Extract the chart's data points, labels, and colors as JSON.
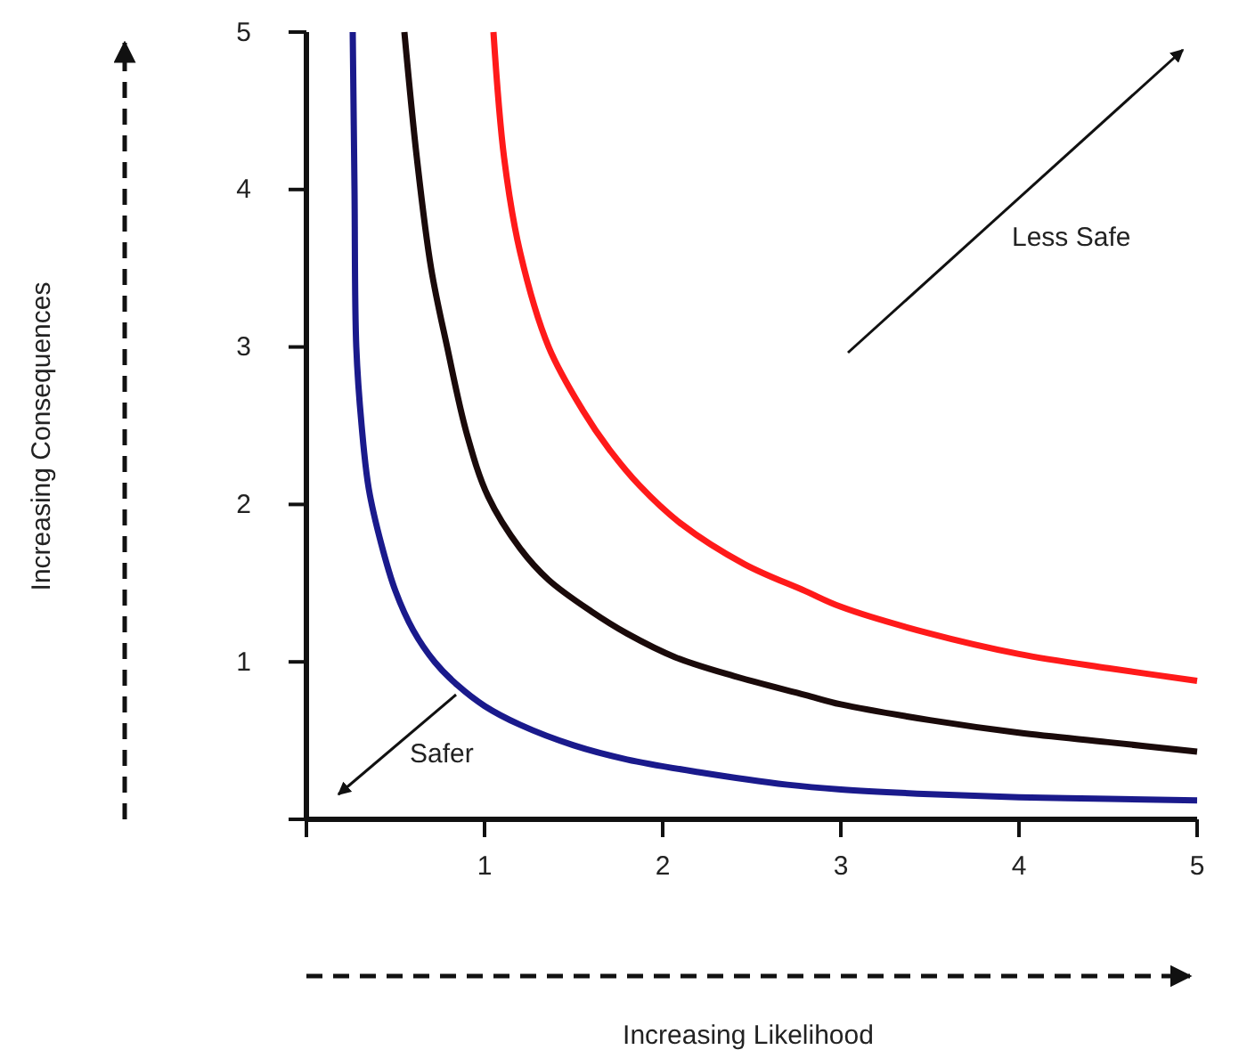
{
  "chart_data": {
    "type": "line",
    "annotations": [
      "Less Safe",
      "Safer",
      "Increasing Likelihood",
      "Increasing Consequences"
    ],
    "xlim": [
      0,
      5
    ],
    "ylim": [
      0,
      5
    ],
    "xticks": [
      {
        "value": 0,
        "label": null
      },
      1,
      2,
      3,
      4,
      5
    ],
    "yticks": [
      {
        "value": 0,
        "label": null
      },
      1,
      2,
      3,
      4,
      5
    ],
    "marker": "none",
    "line_style": "solid",
    "series": [
      {
        "color": "#1a1a8c",
        "x": [
          0.26,
          0.27,
          0.28,
          0.31,
          0.35,
          0.42,
          0.5,
          0.6,
          0.72,
          0.85,
          1.0,
          1.2,
          1.5,
          1.8,
          2.2,
          2.7,
          3.0,
          3.5,
          4.0,
          4.5,
          5.0
        ],
        "values": [
          5,
          4,
          3,
          2.5,
          2.1,
          1.75,
          1.45,
          1.2,
          1.0,
          0.85,
          0.72,
          0.6,
          0.47,
          0.38,
          0.3,
          0.22,
          0.19,
          0.16,
          0.14,
          0.13,
          0.12
        ]
      },
      {
        "color": "#1a0a0a",
        "x": [
          0.55,
          0.62,
          0.7,
          0.79,
          0.9,
          1.02,
          1.2,
          1.36,
          1.6,
          1.8,
          2.07,
          2.4,
          2.8,
          3.0,
          3.5,
          4.0,
          4.5,
          5.0
        ],
        "values": [
          5,
          4.2,
          3.5,
          3,
          2.45,
          2.05,
          1.72,
          1.52,
          1.32,
          1.18,
          1.03,
          0.91,
          0.79,
          0.73,
          0.63,
          0.55,
          0.49,
          0.43
        ]
      },
      {
        "color": "#ff1a1a",
        "x": [
          1.05,
          1.11,
          1.2,
          1.36,
          1.55,
          1.7,
          1.87,
          2.1,
          2.46,
          2.8,
          3.0,
          3.5,
          4.0,
          4.5,
          5.0
        ],
        "values": [
          5,
          4.2,
          3.6,
          3,
          2.6,
          2.35,
          2.12,
          1.88,
          1.62,
          1.45,
          1.35,
          1.18,
          1.05,
          0.96,
          0.88
        ]
      }
    ]
  }
}
